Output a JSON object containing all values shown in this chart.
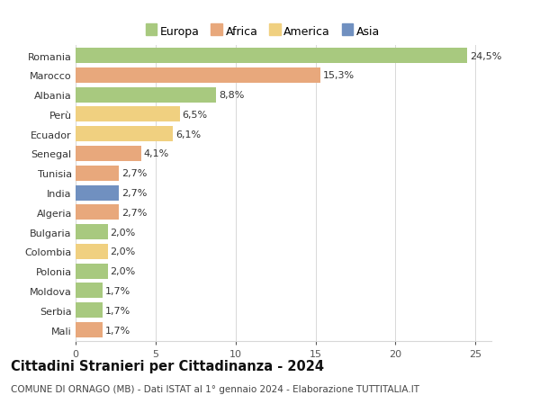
{
  "countries": [
    "Romania",
    "Marocco",
    "Albania",
    "Perù",
    "Ecuador",
    "Senegal",
    "Tunisia",
    "India",
    "Algeria",
    "Bulgaria",
    "Colombia",
    "Polonia",
    "Moldova",
    "Serbia",
    "Mali"
  ],
  "values": [
    24.5,
    15.3,
    8.8,
    6.5,
    6.1,
    4.1,
    2.7,
    2.7,
    2.7,
    2.0,
    2.0,
    2.0,
    1.7,
    1.7,
    1.7
  ],
  "labels": [
    "24,5%",
    "15,3%",
    "8,8%",
    "6,5%",
    "6,1%",
    "4,1%",
    "2,7%",
    "2,7%",
    "2,7%",
    "2,0%",
    "2,0%",
    "2,0%",
    "1,7%",
    "1,7%",
    "1,7%"
  ],
  "continents": [
    "Europa",
    "Africa",
    "Europa",
    "America",
    "America",
    "Africa",
    "Africa",
    "Asia",
    "Africa",
    "Europa",
    "America",
    "Europa",
    "Europa",
    "Europa",
    "Africa"
  ],
  "colors": {
    "Europa": "#a8c97f",
    "Africa": "#e8a87c",
    "America": "#f0d080",
    "Asia": "#7090c0"
  },
  "title": "Cittadini Stranieri per Cittadinanza - 2024",
  "subtitle": "COMUNE DI ORNAGO (MB) - Dati ISTAT al 1° gennaio 2024 - Elaborazione TUTTITALIA.IT",
  "xlim": [
    0,
    26
  ],
  "xticks": [
    0,
    5,
    10,
    15,
    20,
    25
  ],
  "background_color": "#ffffff",
  "bar_height": 0.78,
  "grid_color": "#d8d8d8",
  "label_fontsize": 8,
  "tick_fontsize": 8,
  "title_fontsize": 10.5,
  "subtitle_fontsize": 7.5,
  "legend_fontsize": 9
}
